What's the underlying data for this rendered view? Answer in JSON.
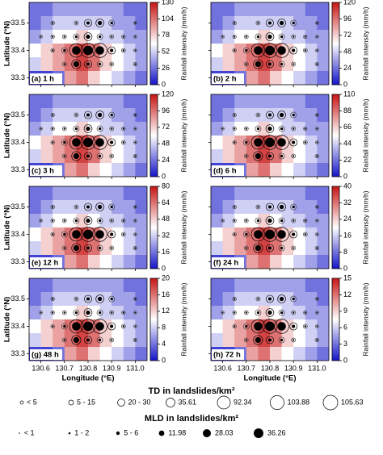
{
  "axes": {
    "xlabel": "Longitude (°E)",
    "ylabel": "Latitude (°N)",
    "xlim": [
      130.55,
      131.05
    ],
    "ylim": [
      33.275,
      33.575
    ],
    "xticks": [
      130.6,
      130.7,
      130.8,
      130.9,
      {
        "value": 131,
        "label": "131.0"
      }
    ],
    "yticks": [
      33.3,
      33.4,
      33.5
    ],
    "x_edges": [
      130.55,
      130.6,
      130.65,
      130.7,
      130.75,
      130.8,
      130.85,
      130.9,
      130.95,
      131.0,
      131.05
    ],
    "y_edges": [
      33.575,
      33.525,
      33.475,
      33.425,
      33.375,
      33.325,
      33.275
    ]
  },
  "sites": {
    "lon": [
      130.65,
      130.75,
      130.8,
      130.85,
      130.9,
      131.0,
      130.6,
      130.65,
      130.7,
      130.75,
      130.8,
      130.85,
      130.9,
      130.95,
      131.0,
      130.65,
      130.7,
      130.75,
      130.8,
      130.85,
      130.9,
      130.95,
      131.0,
      130.7,
      130.75,
      130.8,
      130.85,
      130.9,
      131.0
    ],
    "lat": [
      33.5,
      33.5,
      33.5,
      33.5,
      33.5,
      33.5,
      33.45,
      33.45,
      33.45,
      33.45,
      33.45,
      33.45,
      33.45,
      33.45,
      33.45,
      33.4,
      33.4,
      33.4,
      33.4,
      33.4,
      33.4,
      33.4,
      33.4,
      33.35,
      33.35,
      33.35,
      33.35,
      33.35,
      33.35
    ],
    "td": [
      2,
      3,
      20,
      25,
      10,
      1,
      1,
      2,
      3,
      10,
      25,
      10,
      3,
      2,
      1,
      2,
      10,
      92.34,
      105.63,
      103.88,
      20,
      3,
      1,
      3,
      35.61,
      20,
      10,
      3,
      2
    ],
    "mld": [
      0.5,
      0.5,
      3,
      5.5,
      1.5,
      0.5,
      0.3,
      0.5,
      0.6,
      1.5,
      5.5,
      1.5,
      0.5,
      0.5,
      0.3,
      0.5,
      1.5,
      28.03,
      36.26,
      28.03,
      3,
      0.6,
      0.3,
      0.5,
      11.98,
      3,
      1.5,
      0.5,
      0.5
    ]
  },
  "chart_data": [
    {
      "type": "heatmap",
      "title": "(a) 1 h",
      "colorbar_label": "Rainfall intensity (mm/h)",
      "clim": [
        0,
        130
      ],
      "cticks": [
        0,
        26,
        52,
        78,
        104,
        130
      ],
      "colormap": [
        "#1414c8",
        "#ffffff",
        "#c81414"
      ],
      "values": [
        [
          26,
          26,
          39,
          39,
          39,
          39,
          39,
          39,
          26,
          26
        ],
        [
          26,
          39,
          52,
          52,
          52,
          52,
          52,
          39,
          39,
          26
        ],
        [
          39,
          52,
          65,
          65,
          78,
          65,
          52,
          52,
          39,
          39
        ],
        [
          65,
          78,
          91,
          104,
          117,
          104,
          78,
          65,
          52,
          39
        ],
        [
          52,
          78,
          91,
          104,
          117,
          104,
          78,
          65,
          52,
          39
        ],
        [
          13,
          13,
          26,
          91,
          104,
          78,
          65,
          52,
          39,
          26
        ]
      ]
    },
    {
      "type": "heatmap",
      "title": "(b) 2 h",
      "colorbar_label": "Rainfall intensity (mm/h)",
      "clim": [
        0,
        120
      ],
      "cticks": [
        0,
        24,
        48,
        72,
        96,
        120
      ],
      "colormap": [
        "#1414c8",
        "#ffffff",
        "#c81414"
      ],
      "values": [
        [
          24,
          24,
          36,
          36,
          36,
          36,
          36,
          36,
          24,
          24
        ],
        [
          24,
          36,
          48,
          48,
          48,
          48,
          48,
          36,
          36,
          24
        ],
        [
          36,
          48,
          60,
          60,
          72,
          60,
          48,
          48,
          36,
          36
        ],
        [
          60,
          72,
          84,
          96,
          108,
          96,
          72,
          60,
          48,
          36
        ],
        [
          48,
          72,
          84,
          96,
          108,
          96,
          72,
          60,
          48,
          36
        ],
        [
          12,
          12,
          24,
          84,
          96,
          72,
          60,
          48,
          36,
          24
        ]
      ]
    },
    {
      "type": "heatmap",
      "title": "(c) 3 h",
      "colorbar_label": "Rainfall intensity (mm/h)",
      "clim": [
        0,
        120
      ],
      "cticks": [
        0,
        24,
        48,
        72,
        96,
        120
      ],
      "colormap": [
        "#1414c8",
        "#ffffff",
        "#c81414"
      ],
      "values": [
        [
          24,
          24,
          36,
          36,
          36,
          36,
          36,
          36,
          24,
          24
        ],
        [
          24,
          36,
          48,
          48,
          48,
          48,
          48,
          36,
          36,
          24
        ],
        [
          36,
          48,
          60,
          60,
          72,
          60,
          48,
          48,
          36,
          36
        ],
        [
          60,
          72,
          84,
          96,
          108,
          96,
          72,
          60,
          48,
          36
        ],
        [
          48,
          72,
          84,
          96,
          108,
          96,
          72,
          60,
          48,
          36
        ],
        [
          12,
          12,
          24,
          84,
          96,
          72,
          60,
          48,
          36,
          24
        ]
      ]
    },
    {
      "type": "heatmap",
      "title": "(d) 6 h",
      "colorbar_label": "Rainfall intensity (mm/h)",
      "clim": [
        0,
        110
      ],
      "cticks": [
        0,
        22,
        44,
        66,
        88,
        110
      ],
      "colormap": [
        "#1414c8",
        "#ffffff",
        "#c81414"
      ],
      "values": [
        [
          22,
          22,
          33,
          33,
          33,
          33,
          33,
          33,
          22,
          22
        ],
        [
          22,
          33,
          44,
          44,
          44,
          44,
          44,
          33,
          33,
          22
        ],
        [
          33,
          44,
          55,
          55,
          66,
          55,
          44,
          44,
          33,
          33
        ],
        [
          55,
          66,
          77,
          88,
          99,
          88,
          66,
          55,
          44,
          33
        ],
        [
          44,
          66,
          77,
          88,
          99,
          88,
          66,
          55,
          44,
          33
        ],
        [
          11,
          11,
          22,
          77,
          88,
          66,
          55,
          44,
          33,
          22
        ]
      ]
    },
    {
      "type": "heatmap",
      "title": "(e) 12 h",
      "colorbar_label": "Rainfall intensity (mm/h)",
      "clim": [
        0,
        80
      ],
      "cticks": [
        0,
        16,
        32,
        48,
        64,
        80
      ],
      "colormap": [
        "#1414c8",
        "#ffffff",
        "#c81414"
      ],
      "values": [
        [
          16,
          16,
          24,
          24,
          24,
          24,
          24,
          24,
          16,
          16
        ],
        [
          16,
          24,
          32,
          32,
          32,
          32,
          32,
          24,
          24,
          16
        ],
        [
          24,
          32,
          40,
          40,
          48,
          40,
          32,
          32,
          24,
          24
        ],
        [
          40,
          48,
          56,
          64,
          72,
          64,
          48,
          40,
          32,
          24
        ],
        [
          32,
          48,
          56,
          64,
          72,
          64,
          48,
          40,
          32,
          24
        ],
        [
          8,
          8,
          16,
          56,
          64,
          48,
          40,
          32,
          24,
          16
        ]
      ]
    },
    {
      "type": "heatmap",
      "title": "(f) 24 h",
      "colorbar_label": "Rainfall intensity (mm/h)",
      "clim": [
        0,
        40
      ],
      "cticks": [
        0,
        8,
        16,
        24,
        32,
        40
      ],
      "colormap": [
        "#1414c8",
        "#ffffff",
        "#c81414"
      ],
      "values": [
        [
          8,
          8,
          12,
          12,
          12,
          12,
          12,
          12,
          8,
          8
        ],
        [
          8,
          12,
          16,
          16,
          16,
          16,
          16,
          12,
          12,
          8
        ],
        [
          12,
          16,
          20,
          20,
          24,
          20,
          16,
          16,
          12,
          12
        ],
        [
          20,
          24,
          28,
          32,
          36,
          32,
          24,
          20,
          16,
          12
        ],
        [
          16,
          24,
          28,
          32,
          36,
          32,
          24,
          20,
          16,
          12
        ],
        [
          4,
          4,
          8,
          28,
          32,
          24,
          20,
          16,
          12,
          8
        ]
      ]
    },
    {
      "type": "heatmap",
      "title": "(g) 48 h",
      "colorbar_label": "Rainfall intensity (mm/h)",
      "clim": [
        0,
        20
      ],
      "cticks": [
        0,
        4,
        8,
        12,
        16,
        20
      ],
      "colormap": [
        "#1414c8",
        "#ffffff",
        "#c81414"
      ],
      "values": [
        [
          4,
          4,
          6,
          6,
          6,
          6,
          6,
          6,
          4,
          4
        ],
        [
          4,
          6,
          8,
          8,
          8,
          8,
          8,
          6,
          6,
          4
        ],
        [
          6,
          8,
          10,
          10,
          12,
          10,
          8,
          8,
          6,
          6
        ],
        [
          10,
          12,
          14,
          16,
          18,
          16,
          12,
          10,
          8,
          6
        ],
        [
          8,
          12,
          14,
          16,
          18,
          16,
          12,
          10,
          8,
          6
        ],
        [
          2,
          2,
          4,
          14,
          16,
          12,
          10,
          8,
          6,
          4
        ]
      ]
    },
    {
      "type": "heatmap",
      "title": "(h) 72 h",
      "colorbar_label": "Rainfall intensity (mm/h)",
      "clim": [
        0,
        15
      ],
      "cticks": [
        0,
        3,
        6,
        9,
        12,
        15
      ],
      "colormap": [
        "#1414c8",
        "#ffffff",
        "#c81414"
      ],
      "values": [
        [
          3,
          3,
          4.5,
          4.5,
          4.5,
          4.5,
          4.5,
          4.5,
          3,
          3
        ],
        [
          3,
          4.5,
          6,
          6,
          6,
          6,
          6,
          4.5,
          4.5,
          3
        ],
        [
          4.5,
          6,
          7.5,
          7.5,
          9,
          7.5,
          6,
          6,
          4.5,
          4.5
        ],
        [
          7.5,
          9,
          10.5,
          12,
          13.5,
          12,
          9,
          7.5,
          6,
          4.5
        ],
        [
          6,
          9,
          10.5,
          12,
          13.5,
          12,
          9,
          7.5,
          6,
          4.5
        ],
        [
          1.5,
          1.5,
          3,
          10.5,
          12,
          9,
          7.5,
          6,
          4.5,
          3
        ]
      ]
    }
  ],
  "legend": {
    "td_title": "TD in landslides/km²",
    "td": [
      "< 5",
      "5 - 15",
      "20 - 30",
      35.61,
      92.34,
      103.88,
      105.63
    ],
    "mld_title": "MLD in landslides/km²",
    "mld": [
      "< 1",
      "1 - 2",
      "5 - 6",
      11.98,
      28.03,
      36.26
    ]
  }
}
